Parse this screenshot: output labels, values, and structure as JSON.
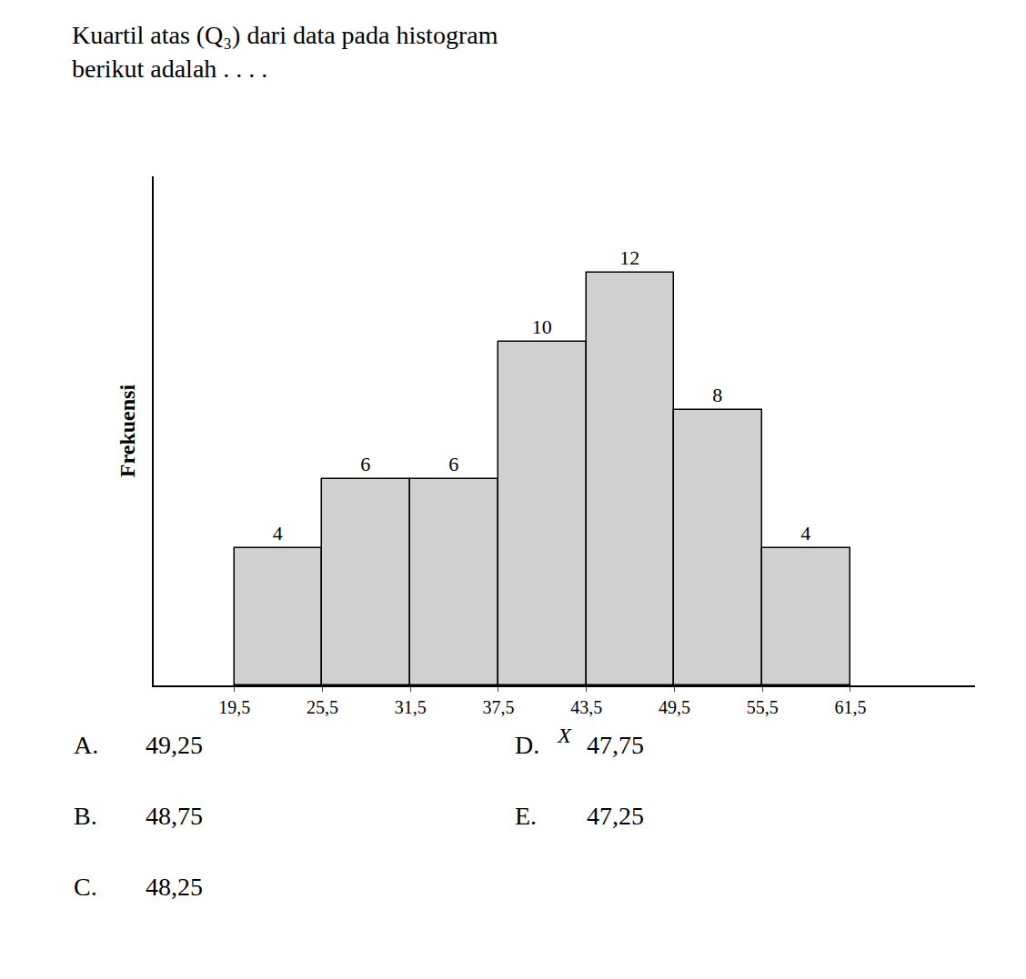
{
  "chart_data": {
    "type": "histogram",
    "title": "Kuartil atas (Q₃) dari data pada histogram",
    "subtitle": "berikut adalah . . . .",
    "xlabel": "X",
    "ylabel": "Frekuensi",
    "bins": [
      19.5,
      25.5,
      31.5,
      37.5,
      43.5,
      49.5,
      55.5,
      61.5
    ],
    "values": [
      4,
      6,
      6,
      10,
      12,
      8,
      4
    ],
    "color": "#d0d0d0",
    "xlim": [
      14,
      70
    ],
    "xticks": [
      {
        "value": 19.5,
        "label": "19,5"
      },
      {
        "value": 25.5,
        "label": "25,5"
      },
      {
        "value": 31.5,
        "label": "31,5"
      },
      {
        "value": 37.5,
        "label": "37,5"
      },
      {
        "value": 43.5,
        "label": "43,5"
      },
      {
        "value": 49.5,
        "label": "49,5"
      },
      {
        "value": 55.5,
        "label": "55,5"
      },
      {
        "value": 61.5,
        "label": "61,5"
      }
    ],
    "ylim": [
      0,
      14.8
    ],
    "tick_labels": "x",
    "grid": false,
    "data_labels": true,
    "annotations": [
      [
        "A.",
        "49,25"
      ],
      [
        "B.",
        "48,75"
      ],
      [
        "C.",
        "48,25"
      ],
      [
        "D.",
        "47,75"
      ],
      [
        "E.",
        "47,25"
      ]
    ]
  }
}
